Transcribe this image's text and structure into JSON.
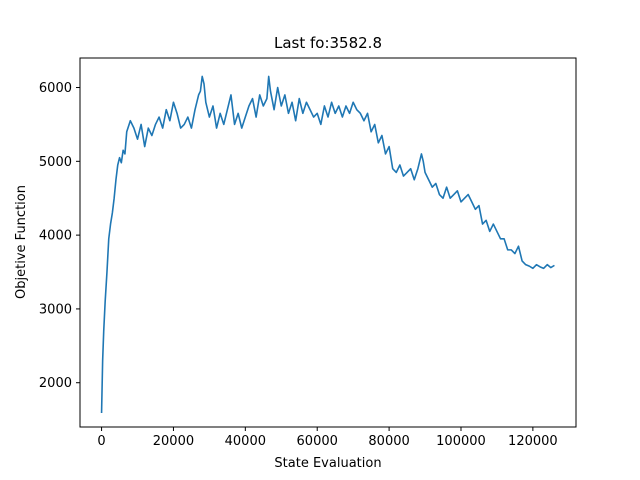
{
  "chart_data": {
    "type": "line",
    "title": "Last fo:3582.8",
    "xlabel": "State Evaluation",
    "ylabel": "Objetive Function",
    "xlim": [
      -6000,
      132000
    ],
    "ylim": [
      1400,
      6400
    ],
    "xticks": [
      0,
      20000,
      40000,
      60000,
      80000,
      100000,
      120000
    ],
    "yticks": [
      2000,
      3000,
      4000,
      5000,
      6000
    ],
    "grid": false,
    "line_color": "#1f77b4",
    "series": [
      {
        "x": [
          0,
          300,
          600,
          1000,
          1500,
          2000,
          2500,
          3000,
          3500,
          4000,
          4500,
          5000,
          5500,
          6000,
          6500,
          7000,
          8000,
          9000,
          10000,
          11000,
          12000,
          13000,
          14000,
          15000,
          16000,
          17000,
          18000,
          19000,
          20000,
          21000,
          22000,
          23000,
          24000,
          25000,
          26000,
          27000,
          27500,
          28000,
          28500,
          29000,
          30000,
          31000,
          32000,
          33000,
          34000,
          35000,
          36000,
          37000,
          38000,
          39000,
          40000,
          41000,
          42000,
          43000,
          44000,
          45000,
          46000,
          46500,
          47000,
          48000,
          49000,
          50000,
          51000,
          52000,
          53000,
          54000,
          55000,
          56000,
          57000,
          58000,
          59000,
          60000,
          61000,
          62000,
          63000,
          64000,
          65000,
          66000,
          67000,
          68000,
          69000,
          70000,
          71000,
          72000,
          73000,
          74000,
          75000,
          76000,
          77000,
          78000,
          79000,
          80000,
          81000,
          82000,
          83000,
          84000,
          85000,
          86000,
          87000,
          88000,
          89000,
          89500,
          90000,
          91000,
          92000,
          93000,
          94000,
          95000,
          96000,
          97000,
          98000,
          99000,
          100000,
          101000,
          102000,
          103000,
          104000,
          105000,
          106000,
          107000,
          108000,
          109000,
          110000,
          111000,
          112000,
          113000,
          114000,
          115000,
          116000,
          117000,
          118000,
          119000,
          120000,
          121000,
          122000,
          123000,
          124000,
          125000,
          126000
        ],
        "y": [
          1590,
          2300,
          2700,
          3100,
          3500,
          3950,
          4150,
          4300,
          4500,
          4750,
          4950,
          5050,
          4980,
          5150,
          5100,
          5400,
          5550,
          5450,
          5300,
          5500,
          5200,
          5450,
          5350,
          5500,
          5600,
          5450,
          5700,
          5550,
          5800,
          5650,
          5450,
          5500,
          5600,
          5450,
          5700,
          5900,
          5950,
          6150,
          6050,
          5800,
          5600,
          5750,
          5450,
          5650,
          5500,
          5700,
          5900,
          5500,
          5650,
          5450,
          5600,
          5750,
          5850,
          5600,
          5900,
          5750,
          5850,
          6150,
          5950,
          5700,
          6000,
          5750,
          5900,
          5650,
          5800,
          5550,
          5850,
          5650,
          5800,
          5700,
          5600,
          5650,
          5500,
          5750,
          5600,
          5800,
          5650,
          5750,
          5600,
          5750,
          5650,
          5800,
          5700,
          5650,
          5550,
          5650,
          5400,
          5500,
          5250,
          5350,
          5100,
          5200,
          4900,
          4850,
          4950,
          4800,
          4850,
          4900,
          4750,
          4900,
          5100,
          5000,
          4850,
          4750,
          4650,
          4700,
          4550,
          4500,
          4650,
          4500,
          4550,
          4600,
          4450,
          4500,
          4550,
          4450,
          4350,
          4400,
          4150,
          4200,
          4050,
          4150,
          4050,
          3950,
          3950,
          3800,
          3800,
          3750,
          3850,
          3650,
          3600,
          3580,
          3550,
          3600,
          3570,
          3550,
          3600,
          3560,
          3590
        ]
      }
    ]
  }
}
